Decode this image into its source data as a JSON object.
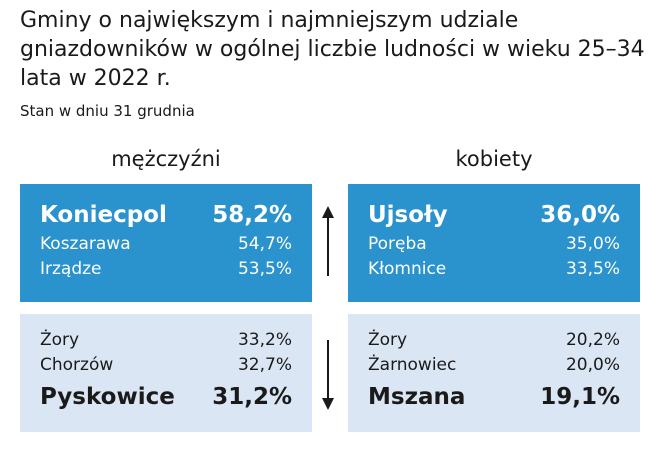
{
  "title": "Gminy o największym i najmniejszym udziale gniazdowników w ogólnej liczbie ludności w wieku 25–34 lata w 2022 r.",
  "subtitle": "Stan w dniu 31 grudnia",
  "chart_data": {
    "type": "table",
    "columns": [
      "mężczyźni",
      "kobiety"
    ],
    "highest": {
      "men": [
        {
          "name": "Koniecpol",
          "value": "58,2%"
        },
        {
          "name": "Koszarawa",
          "value": "54,7%"
        },
        {
          "name": "Irządze",
          "value": "53,5%"
        }
      ],
      "women": [
        {
          "name": "Ujsoły",
          "value": "36,0%"
        },
        {
          "name": "Poręba",
          "value": "35,0%"
        },
        {
          "name": "Kłomnice",
          "value": "33,5%"
        }
      ]
    },
    "lowest": {
      "men": [
        {
          "name": "Żory",
          "value": "33,2%"
        },
        {
          "name": "Chorzów",
          "value": "32,7%"
        },
        {
          "name": "Pyskowice",
          "value": "31,2%"
        }
      ],
      "women": [
        {
          "name": "Żory",
          "value": "20,2%"
        },
        {
          "name": "Żarnowiec",
          "value": "20,0%"
        },
        {
          "name": "Mszana",
          "value": "19,1%"
        }
      ]
    }
  },
  "colors": {
    "top_box": "#2a92cd",
    "bottom_box": "#dbe6f4",
    "text": "#1a1a1a"
  },
  "icons": {
    "up": "arrow-up-icon",
    "down": "arrow-down-icon"
  }
}
